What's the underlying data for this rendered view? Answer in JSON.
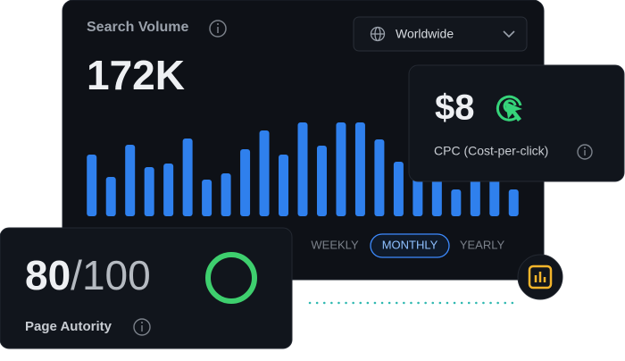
{
  "search_volume": {
    "title": "Search Volume",
    "value": "172K",
    "region": "Worldwide",
    "tabs": [
      "WEEKLY",
      "MONTHLY",
      "YEARLY"
    ]
  },
  "chart_data": {
    "type": "bar",
    "color": "#2f80ed",
    "ylim": [
      0,
      110
    ],
    "values": [
      69,
      44,
      80,
      55,
      59,
      87,
      41,
      48,
      75,
      96,
      69,
      105,
      79,
      105,
      105,
      86,
      61,
      84,
      61,
      30,
      45,
      58,
      30
    ]
  },
  "cpc": {
    "value": "$8",
    "label": "CPC (Cost-per-click)"
  },
  "page_authority": {
    "score": "80",
    "max": "/100",
    "label": "Page Autority"
  }
}
